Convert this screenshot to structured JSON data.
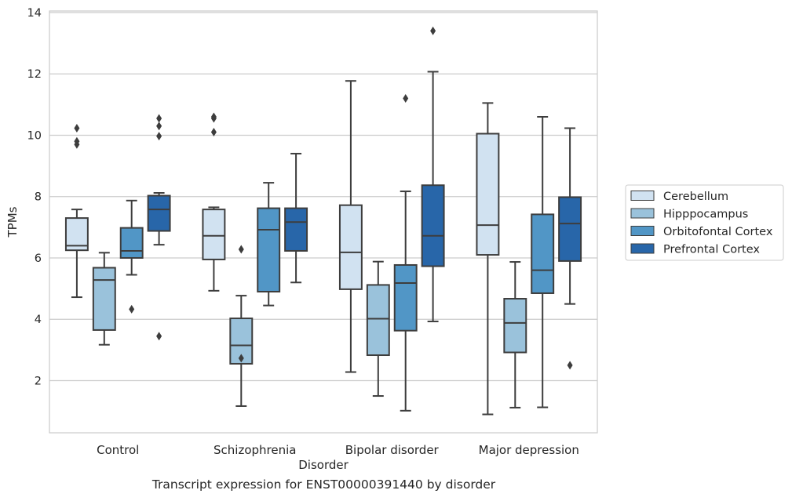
{
  "caption": "Transcript expression for ENST00000391440 by disorder",
  "chart_data": {
    "type": "box",
    "title": "",
    "xlabel": "Disorder",
    "ylabel": "TPMs",
    "ylim": [
      0.3,
      14.05
    ],
    "yticks": [
      2,
      4,
      6,
      8,
      10,
      12,
      14
    ],
    "grid": "horizontal",
    "legend": "right",
    "categories": [
      "Control",
      "Schizophrenia",
      "Bipolar disorder",
      "Major depression"
    ],
    "series": [
      {
        "name": "Cerebellum",
        "color": "#d1e2f1",
        "boxes": [
          {
            "whislo": 4.72,
            "q1": 6.25,
            "med": 6.4,
            "q3": 7.3,
            "whishi": 7.58,
            "fliers": [
              9.7,
              9.8,
              10.23
            ]
          },
          {
            "whislo": 4.93,
            "q1": 5.95,
            "med": 6.72,
            "q3": 7.58,
            "whishi": 7.65,
            "fliers": [
              10.1,
              10.55,
              10.6
            ]
          },
          {
            "whislo": 2.28,
            "q1": 4.98,
            "med": 6.18,
            "q3": 7.72,
            "whishi": 11.77,
            "fliers": []
          },
          {
            "whislo": 0.9,
            "q1": 6.1,
            "med": 7.07,
            "q3": 10.05,
            "whishi": 11.05,
            "fliers": []
          }
        ]
      },
      {
        "name": "Hipppocampus",
        "color": "#9ac2db",
        "boxes": [
          {
            "whislo": 3.17,
            "q1": 3.65,
            "med": 5.28,
            "q3": 5.68,
            "whishi": 6.17,
            "fliers": []
          },
          {
            "whislo": 1.17,
            "q1": 2.55,
            "med": 3.15,
            "q3": 4.03,
            "whishi": 4.77,
            "fliers": [
              2.73,
              6.28
            ]
          },
          {
            "whislo": 1.5,
            "q1": 2.83,
            "med": 4.02,
            "q3": 5.12,
            "whishi": 5.88,
            "fliers": []
          },
          {
            "whislo": 1.12,
            "q1": 2.92,
            "med": 3.88,
            "q3": 4.67,
            "whishi": 5.87,
            "fliers": []
          }
        ]
      },
      {
        "name": "Orbitofontal Cortex",
        "color": "#5196c6",
        "boxes": [
          {
            "whislo": 5.45,
            "q1": 6.0,
            "med": 6.23,
            "q3": 6.98,
            "whishi": 7.87,
            "fliers": [
              4.33
            ]
          },
          {
            "whislo": 4.45,
            "q1": 4.9,
            "med": 6.92,
            "q3": 7.62,
            "whishi": 8.45,
            "fliers": []
          },
          {
            "whislo": 1.02,
            "q1": 3.63,
            "med": 5.18,
            "q3": 5.77,
            "whishi": 8.17,
            "fliers": [
              11.2
            ]
          },
          {
            "whislo": 1.13,
            "q1": 4.85,
            "med": 5.6,
            "q3": 7.42,
            "whishi": 10.6,
            "fliers": []
          }
        ]
      },
      {
        "name": "Prefrontal Cortex",
        "color": "#2866a9",
        "boxes": [
          {
            "whislo": 6.43,
            "q1": 6.88,
            "med": 7.58,
            "q3": 8.03,
            "whishi": 8.12,
            "fliers": [
              3.45,
              9.97,
              10.3,
              10.55
            ]
          },
          {
            "whislo": 5.2,
            "q1": 6.23,
            "med": 7.17,
            "q3": 7.62,
            "whishi": 9.4,
            "fliers": []
          },
          {
            "whislo": 3.93,
            "q1": 5.73,
            "med": 6.72,
            "q3": 8.37,
            "whishi": 12.07,
            "fliers": [
              13.4
            ]
          },
          {
            "whislo": 4.5,
            "q1": 5.9,
            "med": 7.12,
            "q3": 7.98,
            "whishi": 10.23,
            "fliers": [
              2.5
            ]
          }
        ]
      }
    ]
  }
}
